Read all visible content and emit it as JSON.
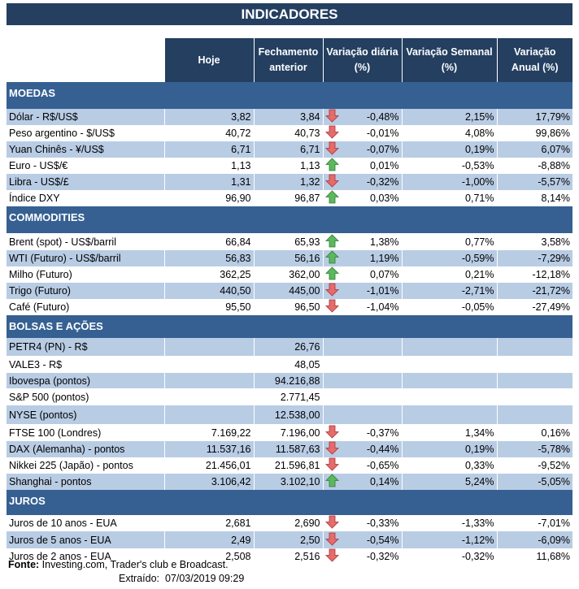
{
  "title": "INDICADORES",
  "headers": [
    "Hoje",
    "Fechamento anterior",
    "Variação diária (%)",
    "Variação Semanal (%)",
    "Variação Anual (%)"
  ],
  "colors": {
    "header_bg": "#243f60",
    "section_bg": "#366092",
    "row_alt": "#b8cce4",
    "arrow_down": "#e46c6c",
    "arrow_up": "#5cb85c"
  },
  "sections": [
    {
      "name": "MOEDAS",
      "rows": [
        {
          "label": "Dólar - R$/US$",
          "hoje": "3,82",
          "fech": "3,84",
          "dir": "down",
          "dia": "-0,48%",
          "sem": "2,15%",
          "ano": "17,79%"
        },
        {
          "label": "Peso argentino - $/US$",
          "hoje": "40,72",
          "fech": "40,73",
          "dir": "down",
          "dia": "-0,01%",
          "sem": "4,08%",
          "ano": "99,86%"
        },
        {
          "label": "Yuan Chinês - ¥/US$",
          "hoje": "6,71",
          "fech": "6,71",
          "dir": "down",
          "dia": "-0,07%",
          "sem": "0,19%",
          "ano": "6,07%"
        },
        {
          "label": "Euro - US$/€",
          "hoje": "1,13",
          "fech": "1,13",
          "dir": "up",
          "dia": "0,01%",
          "sem": "-0,53%",
          "ano": "-8,88%"
        },
        {
          "label": "Libra - US$/£",
          "hoje": "1,31",
          "fech": "1,32",
          "dir": "down",
          "dia": "-0,32%",
          "sem": "-1,00%",
          "ano": "-5,57%"
        },
        {
          "label": "Índice DXY",
          "hoje": "96,90",
          "fech": "96,87",
          "dir": "up",
          "dia": "0,03%",
          "sem": "0,71%",
          "ano": "8,14%"
        }
      ]
    },
    {
      "name": "COMMODITIES",
      "rows": [
        {
          "label": "Brent (spot) - US$/barril",
          "hoje": "66,84",
          "fech": "65,93",
          "dir": "up",
          "dia": "1,38%",
          "sem": "0,77%",
          "ano": "3,58%"
        },
        {
          "label": "WTI (Futuro) - US$/barril",
          "hoje": "56,83",
          "fech": "56,16",
          "dir": "up",
          "dia": "1,19%",
          "sem": "-0,59%",
          "ano": "-7,29%"
        },
        {
          "label": "Milho (Futuro)",
          "hoje": "362,25",
          "fech": "362,00",
          "dir": "up",
          "dia": "0,07%",
          "sem": "0,21%",
          "ano": "-12,18%"
        },
        {
          "label": "Trigo (Futuro)",
          "hoje": "440,50",
          "fech": "445,00",
          "dir": "down",
          "dia": "-1,01%",
          "sem": "-2,71%",
          "ano": "-21,72%"
        },
        {
          "label": "Café (Futuro)",
          "hoje": "95,50",
          "fech": "96,50",
          "dir": "down",
          "dia": "-1,04%",
          "sem": "-0,05%",
          "ano": "-27,49%"
        }
      ]
    },
    {
      "name": "BOLSAS E AÇÕES",
      "rows": [
        {
          "label": "PETR4 (PN) - R$",
          "hoje": "",
          "fech": "26,76",
          "dir": "",
          "dia": "",
          "sem": "",
          "ano": ""
        },
        {
          "label": "VALE3 - R$",
          "hoje": "",
          "fech": "48,05",
          "dir": "",
          "dia": "",
          "sem": "",
          "ano": ""
        },
        {
          "label": "Ibovespa (pontos)",
          "hoje": "",
          "fech": "94.216,88",
          "dir": "",
          "dia": "",
          "sem": "",
          "ano": ""
        },
        {
          "label": "S&P 500 (pontos)",
          "hoje": "",
          "fech": "2.771,45",
          "dir": "",
          "dia": "",
          "sem": "",
          "ano": ""
        },
        {
          "label": "NYSE (pontos)",
          "hoje": "",
          "fech": "12.538,00",
          "dir": "",
          "dia": "",
          "sem": "",
          "ano": ""
        },
        {
          "label": "FTSE 100 (Londres)",
          "hoje": "7.169,22",
          "fech": "7.196,00",
          "dir": "down",
          "dia": "-0,37%",
          "sem": "1,34%",
          "ano": "0,16%"
        },
        {
          "label": "DAX (Alemanha) - pontos",
          "hoje": "11.537,16",
          "fech": "11.587,63",
          "dir": "down",
          "dia": "-0,44%",
          "sem": "0,19%",
          "ano": "-5,78%"
        },
        {
          "label": "Nikkei 225 (Japão) - pontos",
          "hoje": "21.456,01",
          "fech": "21.596,81",
          "dir": "down",
          "dia": "-0,65%",
          "sem": "0,33%",
          "ano": "-9,52%"
        },
        {
          "label": "Shanghai - pontos",
          "hoje": "3.106,42",
          "fech": "3.102,10",
          "dir": "up",
          "dia": "0,14%",
          "sem": "5,24%",
          "ano": "-5,05%"
        }
      ]
    },
    {
      "name": "JUROS",
      "rows": [
        {
          "label": "Juros de 10 anos - EUA",
          "hoje": "2,681",
          "fech": "2,690",
          "dir": "down",
          "dia": "-0,33%",
          "sem": "-1,33%",
          "ano": "-7,01%"
        },
        {
          "label": "Juros de 5 anos - EUA",
          "hoje": "2,49",
          "fech": "2,50",
          "dir": "down",
          "dia": "-0,54%",
          "sem": "-1,12%",
          "ano": "-6,09%"
        },
        {
          "label": "Juros de 2 anos - EUA",
          "hoje": "2,508",
          "fech": "2,516",
          "dir": "down",
          "dia": "-0,32%",
          "sem": "-0,32%",
          "ano": "11,68%"
        }
      ]
    }
  ],
  "footer": {
    "fonte_label": "Fonte:",
    "fonte_text": " Investing.com, Trader's club e Broadcast.",
    "extraido": "Extraído:  07/03/2019 09:29"
  }
}
